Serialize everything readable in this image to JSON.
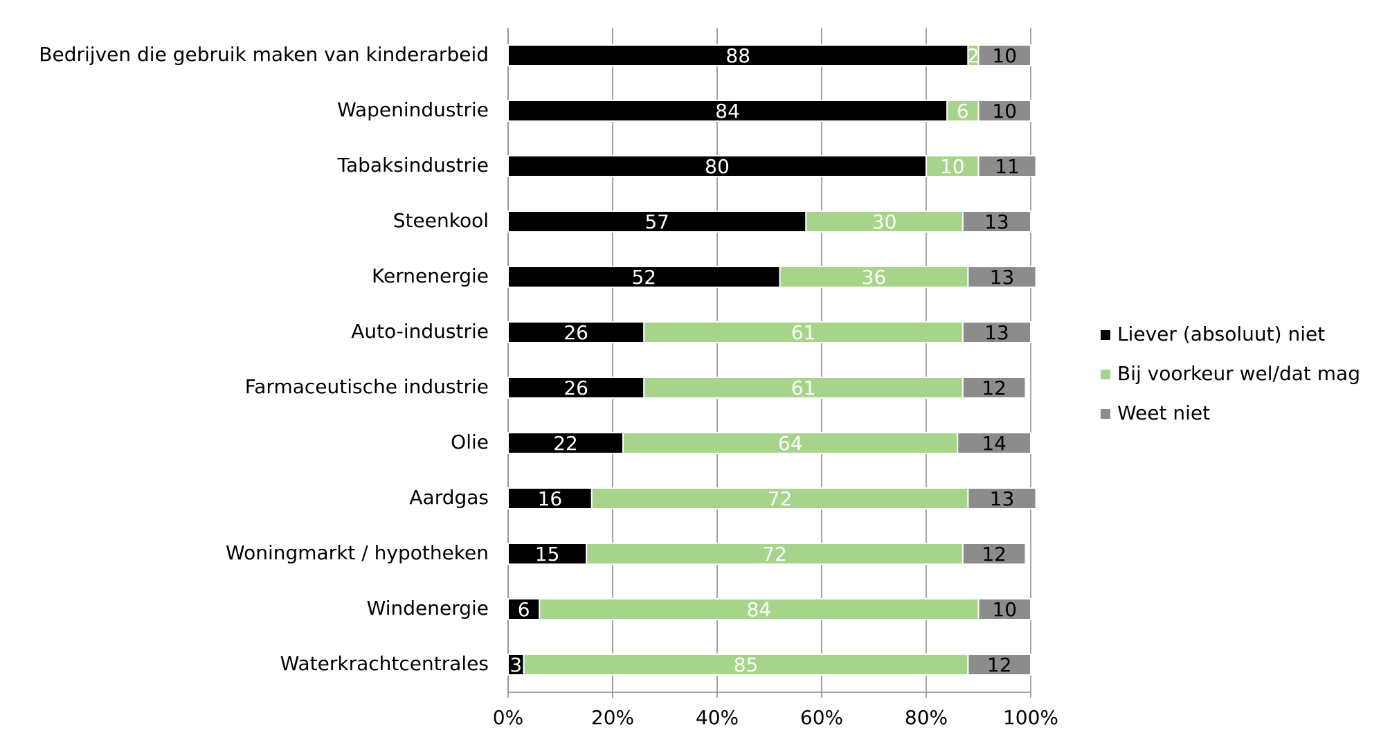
{
  "chart_data": {
    "type": "stacked-bar-horizontal",
    "categories": [
      "Bedrijven die gebruik maken van kinderarbeid",
      "Wapenindustrie",
      "Tabaksindustrie",
      "Steenkool",
      "Kernenergie",
      "Auto-industrie",
      "Farmaceutische industrie",
      "Olie",
      "Aardgas",
      "Woningmarkt / hypotheken",
      "Windenergie",
      "Waterkrachtcentrales"
    ],
    "series": [
      {
        "name": "Liever (absoluut) niet",
        "color": "#000000",
        "label_color": "#ffffff",
        "values": [
          88,
          84,
          80,
          57,
          52,
          26,
          26,
          22,
          16,
          15,
          6,
          3
        ]
      },
      {
        "name": "Bij voorkeur wel/dat mag",
        "color": "#a6d48a",
        "label_color": "#ffffff",
        "values": [
          2,
          6,
          10,
          30,
          36,
          61,
          61,
          64,
          72,
          72,
          84,
          85
        ]
      },
      {
        "name": "Weet niet",
        "color": "#8c8c8c",
        "label_color": "#000000",
        "values": [
          10,
          10,
          11,
          13,
          13,
          13,
          12,
          14,
          13,
          12,
          10,
          12
        ]
      }
    ],
    "xlim": [
      0,
      100
    ],
    "xticks": [
      {
        "value": 0,
        "label": "0%"
      },
      {
        "value": 20,
        "label": "20%"
      },
      {
        "value": 40,
        "label": "40%"
      },
      {
        "value": 60,
        "label": "60%"
      },
      {
        "value": 80,
        "label": "80%"
      },
      {
        "value": 100,
        "label": "100%"
      }
    ],
    "grid": true,
    "legend": "right"
  }
}
